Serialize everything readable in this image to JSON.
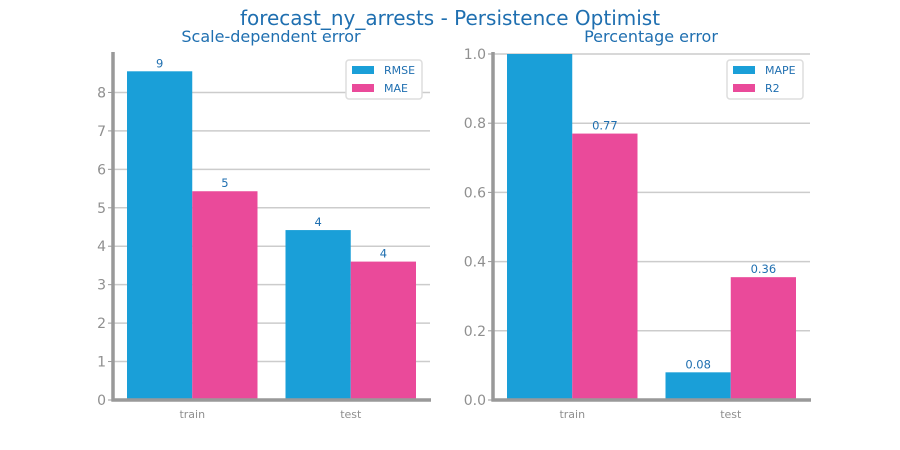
{
  "figure": {
    "title": "forecast_ny_arrests - Persistence Optimist"
  },
  "colors": {
    "series_blue": "#1a9fd8",
    "series_pink": "#ea4a9a",
    "text_blue": "#1f6fb0",
    "axis_gray": "#999999",
    "grid_gray": "#cccccc",
    "tick_gray": "#8f8f8f"
  },
  "chart_data": [
    {
      "type": "bar",
      "title": "Scale-dependent error",
      "xlabel": "",
      "ylabel": "",
      "categories": [
        "train",
        "test"
      ],
      "series": [
        {
          "name": "RMSE",
          "values": [
            8.55,
            4.42
          ],
          "labels": [
            "9",
            "4"
          ]
        },
        {
          "name": "MAE",
          "values": [
            5.43,
            3.6
          ],
          "labels": [
            "5",
            "4"
          ]
        }
      ],
      "ylim": [
        0,
        9
      ],
      "yticks": [
        "0",
        "1",
        "2",
        "3",
        "4",
        "5",
        "6",
        "7",
        "8"
      ],
      "grid": "horizontal",
      "legend": "top-right"
    },
    {
      "type": "bar",
      "title": "Percentage error",
      "xlabel": "",
      "ylabel": "",
      "categories": [
        "train",
        "test"
      ],
      "series": [
        {
          "name": "MAPE",
          "values": [
            1.0,
            0.08
          ],
          "labels": [
            "",
            "0.08"
          ]
        },
        {
          "name": "R2",
          "values": [
            0.77,
            0.355
          ],
          "labels": [
            "0.77",
            "0.36"
          ]
        }
      ],
      "ylim": [
        0,
        1.0
      ],
      "yticks": [
        "0.0",
        "0.2",
        "0.4",
        "0.6",
        "0.8",
        "1.0"
      ],
      "grid": "horizontal",
      "legend": "top-right"
    }
  ]
}
